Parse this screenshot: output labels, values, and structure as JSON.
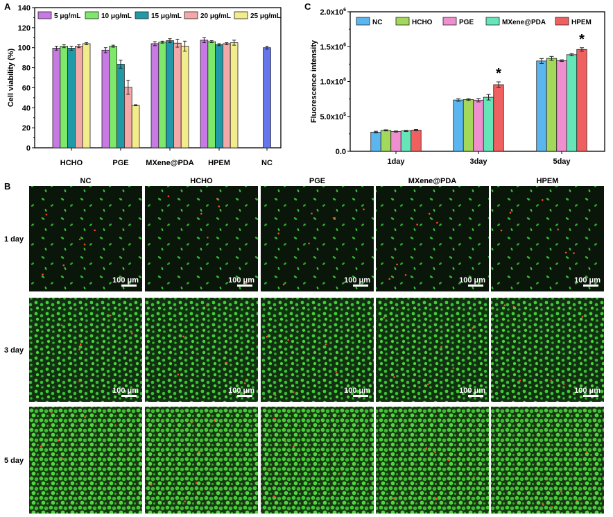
{
  "panels": {
    "a": "A",
    "b": "B",
    "c": "C"
  },
  "chart_data": [
    {
      "type": "bar",
      "panel": "A",
      "ylabel": "Cell viability (%)",
      "xlabel": "",
      "ylim": [
        0,
        140
      ],
      "yticks": [
        "0",
        "20",
        "40",
        "60",
        "80",
        "100",
        "120",
        "140"
      ],
      "categories": [
        "HCHO",
        "PGE",
        "MXene@PDA",
        "HPEM",
        "NC"
      ],
      "legend_position": "top",
      "series": [
        {
          "name": "5 μg/mL",
          "color": "#c77ae3",
          "values": [
            99.5,
            97.5,
            104,
            107.5,
            null
          ],
          "errors": [
            2.0,
            2.5,
            2.0,
            2.5,
            null
          ]
        },
        {
          "name": "10 μg/mL",
          "color": "#7ee86a",
          "values": [
            101.5,
            101.5,
            105.5,
            106,
            null
          ],
          "errors": [
            1.5,
            1.0,
            1.0,
            1.0,
            null
          ]
        },
        {
          "name": "15 μg/mL",
          "color": "#1f9aa6",
          "values": [
            99.5,
            83.5,
            107,
            103,
            null
          ],
          "errors": [
            2.0,
            4.0,
            2.0,
            1.0,
            null
          ]
        },
        {
          "name": "20 μg/mL",
          "color": "#f5a8a8",
          "values": [
            101.5,
            60.5,
            104.5,
            104,
            null
          ],
          "errors": [
            1.5,
            7.0,
            4.0,
            1.0,
            null
          ]
        },
        {
          "name": "25 μg/mL",
          "color": "#f3ec8c",
          "values": [
            104,
            42.5,
            101.5,
            105,
            null
          ],
          "errors": [
            1.0,
            0.5,
            5.0,
            2.5,
            null
          ]
        },
        {
          "name": "NC",
          "legend": false,
          "color": "#6677ee",
          "values": [
            null,
            null,
            null,
            null,
            100
          ],
          "errors": [
            null,
            null,
            null,
            null,
            1.5
          ]
        }
      ]
    },
    {
      "type": "bar",
      "panel": "C",
      "ylabel": "Fluorescence intensity",
      "xlabel": "",
      "ylim": [
        0,
        2000000
      ],
      "yticks": [
        {
          "mant": "0.0",
          "exp": ""
        },
        {
          "mant": "5.0x10",
          "exp": "5"
        },
        {
          "mant": "1.0x10",
          "exp": "6"
        },
        {
          "mant": "1.5x10",
          "exp": "6"
        },
        {
          "mant": "2.0x10",
          "exp": "6"
        }
      ],
      "categories": [
        "1day",
        "3day",
        "5day"
      ],
      "legend_position": "top",
      "series": [
        {
          "name": "NC",
          "color": "#5bb6f0",
          "values": [
            275000,
            735000,
            1295000
          ],
          "errors": [
            12000,
            18000,
            35000
          ]
        },
        {
          "name": "HCHO",
          "color": "#a3d85b",
          "values": [
            300000,
            742000,
            1332000
          ],
          "errors": [
            8000,
            12000,
            28000
          ]
        },
        {
          "name": "PGE",
          "color": "#ef8fcf",
          "values": [
            283000,
            733000,
            1300000
          ],
          "errors": [
            8000,
            25000,
            12000
          ]
        },
        {
          "name": "MXene@PDA",
          "color": "#66e6b8",
          "values": [
            292000,
            775000,
            1385000
          ],
          "errors": [
            8000,
            40000,
            15000
          ]
        },
        {
          "name": "HPEM",
          "color": "#f06060",
          "values": [
            303000,
            955000,
            1460000
          ],
          "errors": [
            10000,
            40000,
            25000
          ]
        }
      ],
      "annotations": [
        "*",
        "*"
      ]
    }
  ],
  "microscopy": {
    "columns": [
      "NC",
      "HCHO",
      "PGE",
      "MXene@PDA",
      "HPEM"
    ],
    "rows": [
      "1 day",
      "3 day",
      "5 day"
    ],
    "scale_bar": "100 μm",
    "image_colors": {
      "background": "#0b1a0b",
      "cells": "#3fd43f",
      "dead": "#ff4a2a"
    },
    "scale_bar_rows": [
      0,
      1
    ]
  }
}
